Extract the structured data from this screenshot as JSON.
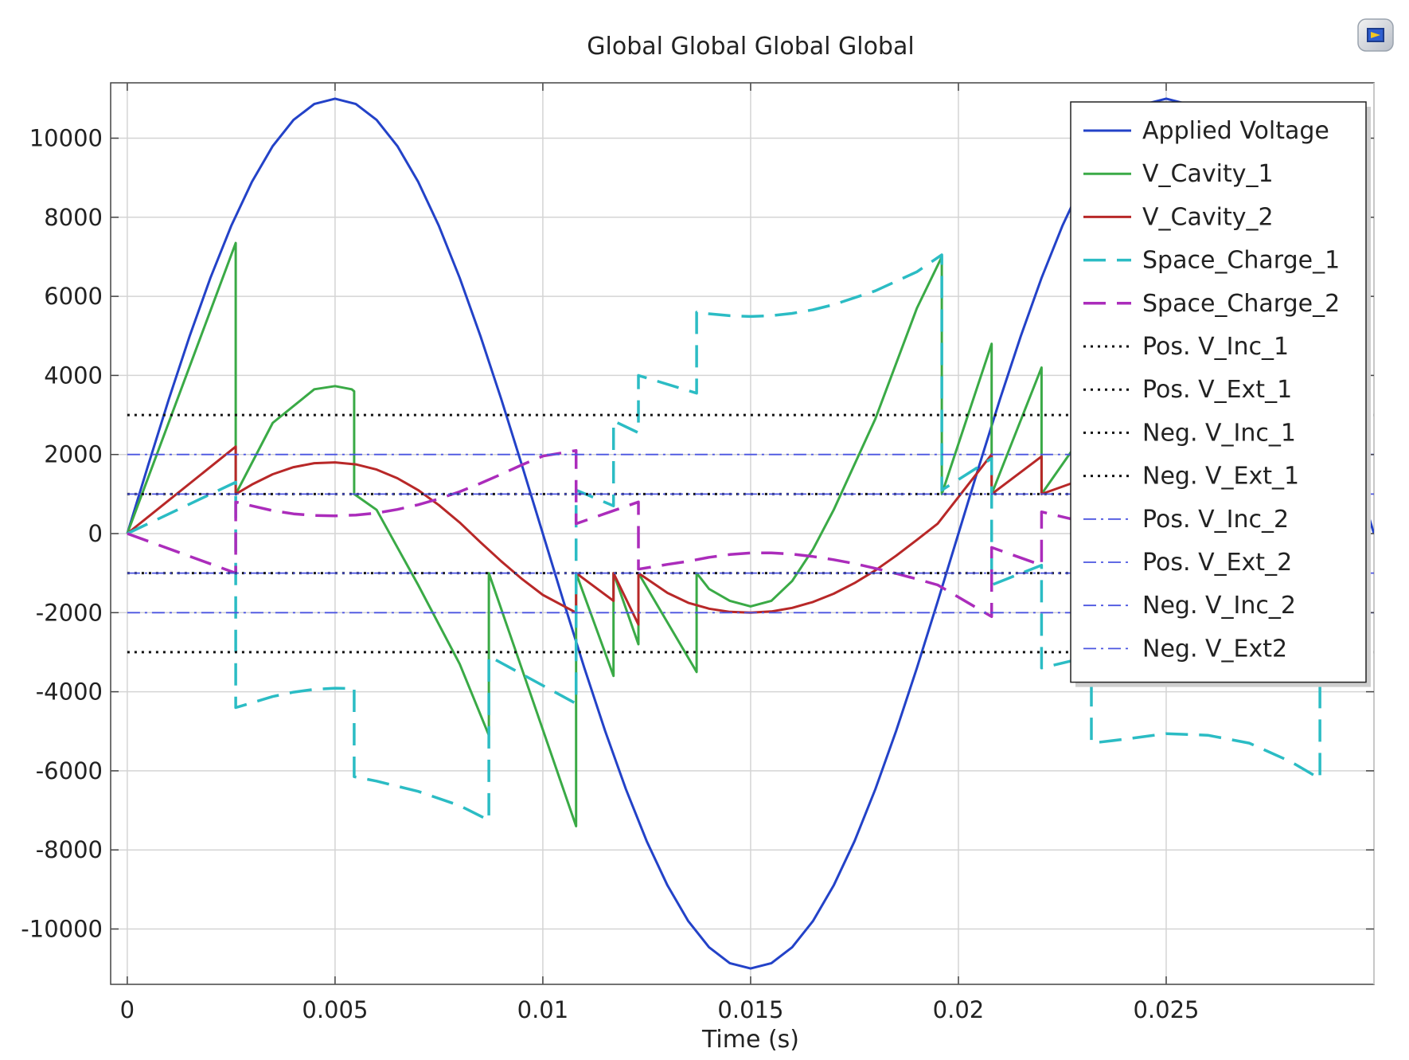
{
  "chart_data": {
    "type": "line",
    "title": "Global  Global  Global  Global",
    "xlabel": "Time (s)",
    "ylabel": "",
    "xlim": [
      -0.0004,
      0.03
    ],
    "ylim": [
      -11400,
      11400
    ],
    "x_ticks": [
      0,
      0.005,
      0.01,
      0.015,
      0.02,
      0.025
    ],
    "x_tick_labels": [
      "0",
      "0.005",
      "0.01",
      "0.015",
      "0.02",
      "0.025"
    ],
    "y_ticks": [
      10000,
      8000,
      6000,
      4000,
      2000,
      0,
      -2000,
      -4000,
      -6000,
      -8000,
      -10000
    ],
    "y_tick_labels": [
      "10000",
      "8000",
      "6000",
      "4000",
      "2000",
      "0",
      "-2000",
      "-4000",
      "-6000",
      "-8000",
      "-10000"
    ],
    "grid": true,
    "legend_position": "top-right",
    "series": [
      {
        "name": "Applied Voltage",
        "color": "#2342c8",
        "style": "solid",
        "x": [
          0,
          0.0005,
          0.001,
          0.0015,
          0.002,
          0.0025,
          0.003,
          0.0035,
          0.004,
          0.0045,
          0.005,
          0.0055,
          0.006,
          0.0065,
          0.007,
          0.0075,
          0.008,
          0.0085,
          0.009,
          0.0095,
          0.01,
          0.0105,
          0.011,
          0.0115,
          0.012,
          0.0125,
          0.013,
          0.0135,
          0.014,
          0.0145,
          0.015,
          0.0155,
          0.016,
          0.0165,
          0.017,
          0.0175,
          0.018,
          0.0185,
          0.019,
          0.0195,
          0.02,
          0.0205,
          0.021,
          0.0215,
          0.022,
          0.0225,
          0.023,
          0.0235,
          0.024,
          0.0245,
          0.025,
          0.0255,
          0.026,
          0.0265,
          0.027,
          0.0275,
          0.028,
          0.0285,
          0.029,
          0.0295,
          0.03
        ],
        "y": [
          0,
          1721,
          3399,
          4993,
          6466,
          7778,
          8899,
          9800,
          10462,
          10864,
          11000,
          10864,
          10462,
          9800,
          8899,
          7778,
          6466,
          4993,
          3399,
          1721,
          0,
          -1721,
          -3399,
          -4993,
          -6466,
          -7778,
          -8899,
          -9800,
          -10462,
          -10864,
          -11000,
          -10864,
          -10462,
          -9800,
          -8899,
          -7778,
          -6466,
          -4993,
          -3399,
          -1721,
          0,
          1721,
          3399,
          4993,
          6466,
          7778,
          8899,
          9800,
          10462,
          10864,
          11000,
          10864,
          10462,
          9800,
          8899,
          7778,
          6466,
          4993,
          3399,
          1721,
          0
        ]
      },
      {
        "name": "V_Cavity_1",
        "color": "#3aaa46",
        "style": "solid",
        "x": [
          0,
          0.00261,
          0.00261,
          0.0035,
          0.0045,
          0.005,
          0.0054,
          0.00546,
          0.00546,
          0.006,
          0.007,
          0.008,
          0.0087,
          0.0087,
          0.0108,
          0.0108,
          0.0117,
          0.0117,
          0.0123,
          0.0123,
          0.0137,
          0.0137,
          0.014,
          0.0145,
          0.015,
          0.0155,
          0.016,
          0.0165,
          0.017,
          0.018,
          0.019,
          0.0196,
          0.0196,
          0.0208,
          0.0208,
          0.022,
          0.022,
          0.0232
        ],
        "y": [
          0,
          7350,
          1000,
          2800,
          3650,
          3730,
          3650,
          3600,
          1000,
          600,
          -1300,
          -3300,
          -5100,
          -1000,
          -7400,
          -1000,
          -3600,
          -1000,
          -2800,
          -1000,
          -3500,
          -1000,
          -1400,
          -1700,
          -1840,
          -1700,
          -1200,
          -400,
          600,
          2900,
          5700,
          7000,
          1000,
          4800,
          1000,
          4200,
          1000,
          2800
        ]
      },
      {
        "name": "V_Cavity_2",
        "color": "#b82828",
        "style": "solid",
        "x": [
          0,
          0.00261,
          0.00261,
          0.003,
          0.0035,
          0.004,
          0.0045,
          0.005,
          0.0055,
          0.006,
          0.0065,
          0.007,
          0.0075,
          0.008,
          0.0085,
          0.009,
          0.0095,
          0.01,
          0.0108,
          0.0108,
          0.0117,
          0.0117,
          0.0123,
          0.0123,
          0.013,
          0.0135,
          0.014,
          0.0145,
          0.015,
          0.0155,
          0.016,
          0.0165,
          0.017,
          0.0175,
          0.018,
          0.0185,
          0.019,
          0.0195,
          0.0208,
          0.0208,
          0.022,
          0.022,
          0.0232
        ],
        "y": [
          0,
          2200,
          1000,
          1240,
          1500,
          1680,
          1780,
          1800,
          1750,
          1620,
          1400,
          1100,
          720,
          280,
          -220,
          -700,
          -1150,
          -1550,
          -2000,
          -1000,
          -1700,
          -1000,
          -2300,
          -1000,
          -1500,
          -1750,
          -1900,
          -1980,
          -2000,
          -1970,
          -1880,
          -1730,
          -1520,
          -1250,
          -930,
          -560,
          -160,
          250,
          2000,
          1000,
          1950,
          1000,
          1450
        ]
      },
      {
        "name": "Space_Charge_1",
        "color": "#2bbcc4",
        "style": "dash",
        "x": [
          0,
          0.00261,
          0.00261,
          0.003,
          0.0035,
          0.004,
          0.0045,
          0.005,
          0.0054,
          0.00546,
          0.00546,
          0.006,
          0.007,
          0.008,
          0.0087,
          0.0087,
          0.0108,
          0.0108,
          0.0117,
          0.0117,
          0.0123,
          0.0123,
          0.0137,
          0.0137,
          0.014,
          0.0145,
          0.015,
          0.0155,
          0.016,
          0.0165,
          0.017,
          0.018,
          0.019,
          0.0196,
          0.0196,
          0.0208,
          0.0208,
          0.022,
          0.022,
          0.0232,
          0.0232,
          0.024,
          0.025,
          0.026,
          0.027,
          0.028,
          0.0287,
          0.0287
        ],
        "y": [
          0,
          1300,
          -4400,
          -4280,
          -4120,
          -4010,
          -3940,
          -3910,
          -3920,
          -3900,
          -6150,
          -6260,
          -6520,
          -6880,
          -7250,
          -3100,
          -4300,
          1100,
          700,
          2850,
          2550,
          4000,
          3550,
          5600,
          5560,
          5510,
          5490,
          5510,
          5570,
          5660,
          5790,
          6140,
          6620,
          7050,
          1100,
          1900,
          -1300,
          -800,
          -3400,
          -3100,
          -5300,
          -5200,
          -5060,
          -5100,
          -5300,
          -5770,
          -6200,
          -3000
        ]
      },
      {
        "name": "Space_Charge_2",
        "color": "#ab2cbb",
        "style": "dash",
        "x": [
          0,
          0.00261,
          0.00261,
          0.003,
          0.0035,
          0.004,
          0.0045,
          0.005,
          0.0055,
          0.006,
          0.0065,
          0.007,
          0.0075,
          0.008,
          0.0085,
          0.009,
          0.0095,
          0.01,
          0.0108,
          0.0108,
          0.0123,
          0.0123,
          0.013,
          0.0135,
          0.014,
          0.0145,
          0.015,
          0.0155,
          0.016,
          0.0165,
          0.017,
          0.0175,
          0.018,
          0.0185,
          0.019,
          0.0195,
          0.0208,
          0.0208,
          0.022,
          0.022,
          0.0232
        ],
        "y": [
          0,
          -1000,
          800,
          700,
          580,
          500,
          460,
          450,
          470,
          520,
          610,
          730,
          880,
          1060,
          1270,
          1500,
          1740,
          1960,
          2100,
          250,
          800,
          -900,
          -780,
          -700,
          -600,
          -530,
          -490,
          -490,
          -520,
          -580,
          -660,
          -760,
          -880,
          -1010,
          -1150,
          -1300,
          -2100,
          -350,
          -800,
          550,
          250
        ]
      },
      {
        "name": "Pos. V_Inc_1",
        "color": "#111111",
        "style": "dot",
        "x": [
          0,
          0.03
        ],
        "y": [
          3000,
          3000
        ]
      },
      {
        "name": "Pos. V_Ext_1",
        "color": "#111111",
        "style": "dot",
        "x": [
          0,
          0.03
        ],
        "y": [
          1000,
          1000
        ]
      },
      {
        "name": "Neg. V_Inc_1",
        "color": "#111111",
        "style": "dot",
        "x": [
          0,
          0.03
        ],
        "y": [
          -3000,
          -3000
        ]
      },
      {
        "name": "Neg. V_Ext_1",
        "color": "#111111",
        "style": "dot",
        "x": [
          0,
          0.03
        ],
        "y": [
          -1000,
          -1000
        ]
      },
      {
        "name": "Pos. V_Inc_2",
        "color": "#4b55e0",
        "style": "dashdot",
        "x": [
          0,
          0.03
        ],
        "y": [
          2000,
          2000
        ]
      },
      {
        "name": "Pos. V_Ext_2",
        "color": "#4b55e0",
        "style": "dashdot",
        "x": [
          0,
          0.03
        ],
        "y": [
          1000,
          1000
        ]
      },
      {
        "name": "Neg. V_Inc_2",
        "color": "#4b55e0",
        "style": "dashdot",
        "x": [
          0,
          0.03
        ],
        "y": [
          -2000,
          -2000
        ]
      },
      {
        "name": "Neg. V_Ext2",
        "color": "#4b55e0",
        "style": "dashdot",
        "x": [
          0,
          0.03
        ],
        "y": [
          -1000,
          -1000
        ]
      }
    ]
  }
}
